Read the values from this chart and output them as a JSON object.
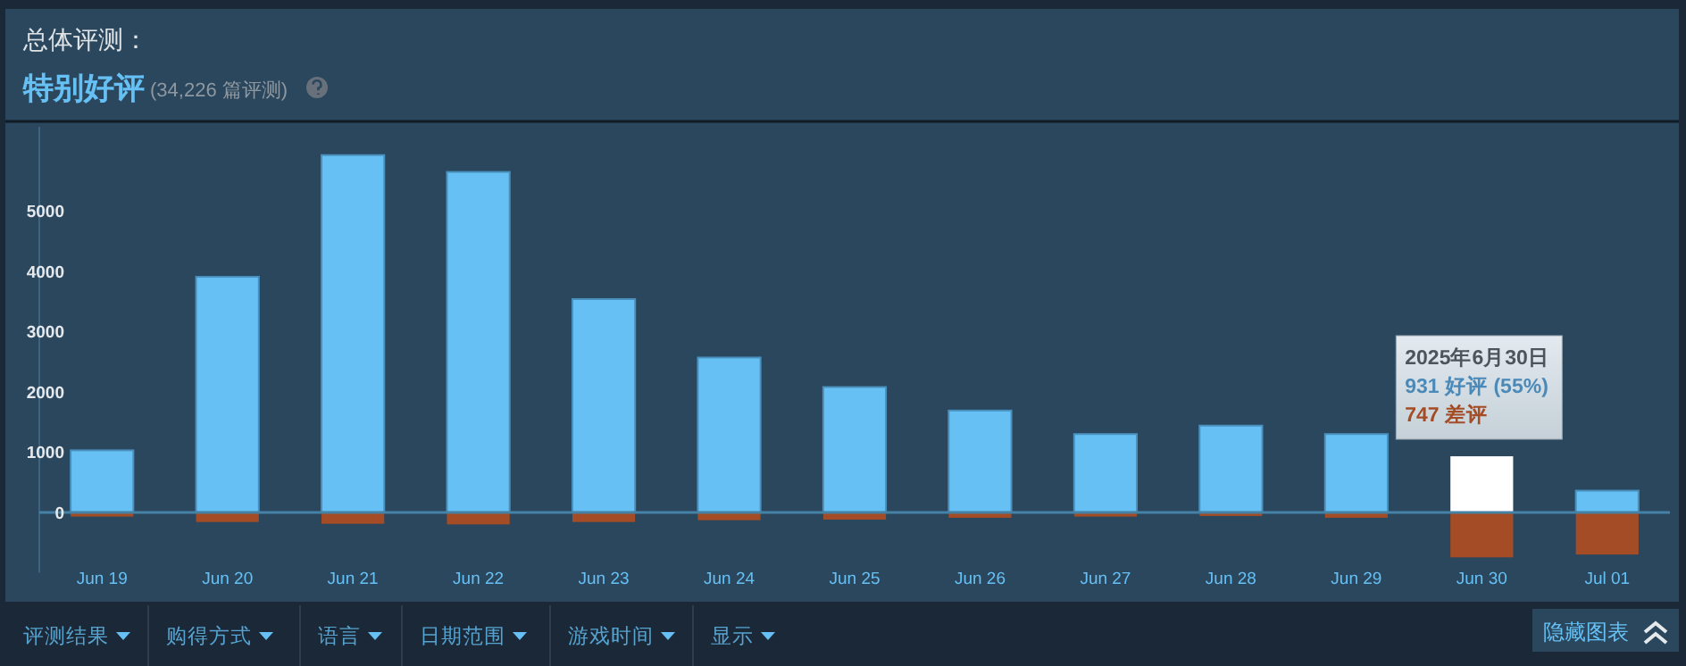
{
  "chart_data": {
    "type": "bar",
    "title": "总体评测：",
    "subtitle": "特别好评",
    "categories": [
      "Jun 19",
      "Jun 20",
      "Jun 21",
      "Jun 22",
      "Jun 23",
      "Jun 24",
      "Jun 25",
      "Jun 26",
      "Jun 27",
      "Jun 28",
      "Jun 29",
      "Jun 30",
      "Jul 01"
    ],
    "series": [
      {
        "colors": [
          "#66c0f4",
          "#66c0f4",
          "#66c0f4",
          "#66c0f4",
          "#66c0f4",
          "#66c0f4",
          "#66c0f4",
          "#66c0f4",
          "#66c0f4",
          "#66c0f4",
          "#66c0f4",
          "#ffffff",
          "#66c0f4"
        ],
        "values": [
          1030,
          3910,
          5930,
          5650,
          3540,
          2570,
          2080,
          1690,
          1300,
          1440,
          1300,
          931,
          360
        ]
      },
      {
        "color": "#a34c25",
        "values": [
          -70,
          -160,
          -190,
          -200,
          -160,
          -130,
          -120,
          -90,
          -70,
          -60,
          -90,
          -747,
          -700
        ]
      }
    ],
    "ylim": [
      -1000,
      6400
    ],
    "yticks": [
      0,
      1000,
      2000,
      3000,
      4000,
      5000
    ],
    "grid": false,
    "stacked": true,
    "ref_lines": [
      {
        "axis": "y",
        "value": 0,
        "color": "#4582a5"
      }
    ],
    "annotations": [
      "(34,226 篇评测)",
      "2025年6月30日",
      "931 好评 (55%)",
      "747 差评",
      "评测结果",
      "购得方式",
      "语言",
      "日期范围",
      "游戏时间",
      "显示",
      "隐藏图表"
    ]
  }
}
